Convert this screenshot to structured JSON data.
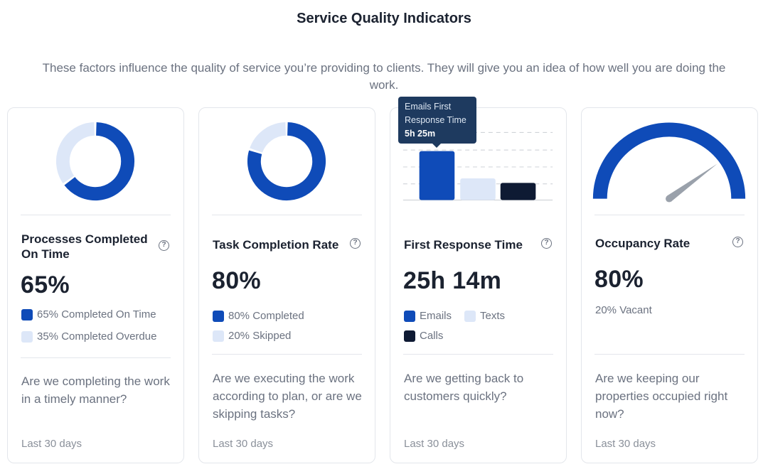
{
  "header": {
    "title": "Service Quality Indicators",
    "subtitle": "These factors influence the quality of service you’re providing to clients. They will give you an idea of how well you are doing the work."
  },
  "colors": {
    "primary": "#0f4bb8",
    "light": "#dde7f8",
    "dark": "#0e1a33",
    "needle": "#9aa1ab"
  },
  "cards": [
    {
      "title": "Processes Completed On Time",
      "help_icon": "question-circle-icon",
      "value": "65%",
      "legend": [
        {
          "label": "65% Completed On Time",
          "color": "#0f4bb8"
        },
        {
          "label": "35% Completed Overdue",
          "color": "#dde7f8"
        }
      ],
      "question": "Are we completing the work in a timely manner?",
      "period": "Last 30 days"
    },
    {
      "title": "Task Completion Rate",
      "help_icon": "question-circle-icon",
      "value": "80%",
      "legend": [
        {
          "label": "80% Completed",
          "color": "#0f4bb8"
        },
        {
          "label": "20% Skipped",
          "color": "#dde7f8"
        }
      ],
      "question": "Are we executing the work according to plan, or are we skipping tasks?",
      "period": "Last 30 days"
    },
    {
      "title": "First Response Time",
      "help_icon": "question-circle-icon",
      "value": "25h 14m",
      "legend": [
        {
          "label": "Emails",
          "color": "#0f4bb8"
        },
        {
          "label": "Texts",
          "color": "#dde7f8"
        },
        {
          "label": "Calls",
          "color": "#0e1a33"
        }
      ],
      "tooltip": {
        "name": "Emails First Response Time",
        "value": "5h 25m"
      },
      "question": "Are we getting back to customers quickly?",
      "period": "Last 30 days"
    },
    {
      "title": "Occupancy Rate",
      "help_icon": "question-circle-icon",
      "value": "80%",
      "legend": [
        {
          "label": "20% Vacant"
        }
      ],
      "question": "Are we keeping our properties occupied right now?",
      "period": "Last 30 days"
    }
  ],
  "chart_data": [
    {
      "type": "pie",
      "categories": [
        "Completed On Time",
        "Completed Overdue"
      ],
      "values": [
        65,
        35
      ]
    },
    {
      "type": "pie",
      "categories": [
        "Completed",
        "Skipped"
      ],
      "values": [
        80,
        20
      ]
    },
    {
      "type": "bar",
      "categories": [
        "Emails",
        "Texts",
        "Calls"
      ],
      "values": [
        5.42,
        2.4,
        1.9
      ]
    },
    {
      "type": "gauge",
      "categories": [
        "Occupied",
        "Vacant"
      ],
      "values": [
        80,
        20
      ]
    }
  ]
}
